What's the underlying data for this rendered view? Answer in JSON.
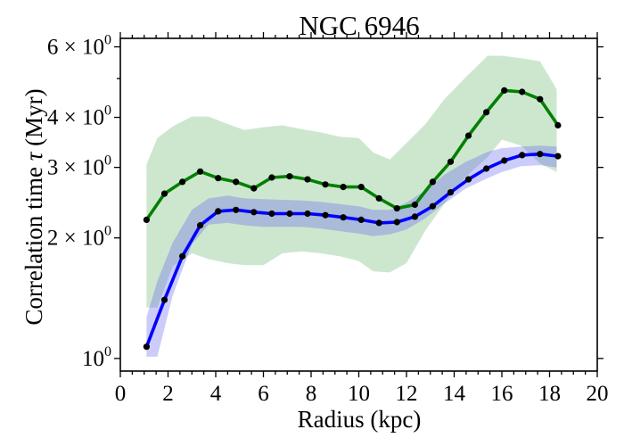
{
  "chart_data": {
    "type": "line",
    "title": "NGC 6946",
    "xlabel": "Radius (kpc)",
    "ylabel_prefix": "Correlation time ",
    "ylabel_symbol": "τ",
    "ylabel_suffix": " (Myr)",
    "xlim": [
      0,
      20
    ],
    "ylim": [
      0.93,
      6.3
    ],
    "yscale": "log",
    "x_ticks": [
      0,
      2,
      4,
      6,
      8,
      10,
      12,
      14,
      16,
      18,
      20
    ],
    "y_ticks": [
      {
        "value": 1,
        "base": "10",
        "exp": "0"
      },
      {
        "value": 2,
        "base": "2 × 10",
        "exp": "0"
      },
      {
        "value": 3,
        "base": "3 × 10",
        "exp": "0"
      },
      {
        "value": 4,
        "base": "4 × 10",
        "exp": "0"
      },
      {
        "value": 6,
        "base": "6 × 10",
        "exp": "0"
      }
    ],
    "y_minor_ticks": [
      5
    ],
    "grid": false,
    "legend": false,
    "x": [
      1.1,
      1.85,
      2.6,
      3.35,
      4.1,
      4.85,
      5.6,
      6.35,
      7.1,
      7.85,
      8.6,
      9.35,
      10.1,
      10.85,
      11.6,
      12.35,
      13.1,
      13.85,
      14.6,
      15.35,
      16.1,
      16.85,
      17.6,
      18.35
    ],
    "series": [
      {
        "color": "#008000",
        "band_color": "#2e9b36",
        "band_opacity": 0.24,
        "values": [
          2.22,
          2.58,
          2.76,
          2.93,
          2.82,
          2.76,
          2.66,
          2.83,
          2.85,
          2.8,
          2.72,
          2.68,
          2.68,
          2.51,
          2.37,
          2.42,
          2.76,
          3.1,
          3.6,
          4.12,
          4.67,
          4.63,
          4.44,
          3.82
        ],
        "band_x": [
          1.1,
          1.55,
          2.2,
          3.0,
          3.7,
          4.5,
          5.2,
          6.0,
          6.8,
          7.6,
          8.4,
          9.2,
          10.0,
          10.6,
          11.3,
          12.0,
          12.8,
          13.6,
          14.5,
          15.4,
          16.0,
          16.8,
          17.6,
          18.3
        ],
        "band_upper": [
          3.05,
          3.55,
          3.8,
          4.02,
          4.02,
          3.85,
          3.72,
          3.78,
          3.82,
          3.74,
          3.67,
          3.58,
          3.55,
          3.27,
          3.14,
          3.45,
          3.85,
          4.45,
          5.05,
          5.7,
          5.7,
          5.62,
          5.52,
          4.7
        ],
        "band_lower": [
          1.34,
          1.34,
          1.7,
          1.83,
          1.77,
          1.73,
          1.71,
          1.71,
          1.83,
          1.85,
          1.83,
          1.8,
          1.75,
          1.65,
          1.64,
          1.73,
          2.09,
          2.44,
          2.85,
          3.18,
          3.52,
          3.4,
          3.07,
          2.92
        ]
      },
      {
        "color": "#0000ff",
        "band_color": "#5555ee",
        "band_opacity": 0.3,
        "values": [
          1.07,
          1.4,
          1.8,
          2.15,
          2.33,
          2.35,
          2.32,
          2.3,
          2.3,
          2.3,
          2.28,
          2.25,
          2.22,
          2.18,
          2.19,
          2.26,
          2.4,
          2.6,
          2.8,
          2.98,
          3.12,
          3.22,
          3.24,
          3.2
        ],
        "band_x": [
          1.1,
          1.55,
          2.2,
          3.0,
          3.7,
          4.5,
          5.2,
          6.0,
          6.8,
          7.6,
          8.4,
          9.2,
          10.0,
          10.6,
          11.3,
          12.0,
          12.8,
          13.6,
          14.5,
          15.4,
          16.0,
          16.8,
          17.6,
          18.3
        ],
        "band_upper": [
          1.27,
          1.56,
          1.95,
          2.35,
          2.51,
          2.55,
          2.51,
          2.5,
          2.49,
          2.48,
          2.46,
          2.43,
          2.4,
          2.35,
          2.35,
          2.45,
          2.63,
          2.88,
          3.1,
          3.28,
          3.35,
          3.38,
          3.4,
          3.38
        ],
        "band_lower": [
          1.01,
          1.01,
          1.44,
          1.93,
          2.16,
          2.18,
          2.15,
          2.13,
          2.13,
          2.13,
          2.11,
          2.08,
          2.05,
          2.02,
          2.04,
          2.1,
          2.24,
          2.44,
          2.66,
          2.82,
          2.92,
          3.02,
          3.04,
          3.0
        ]
      }
    ]
  }
}
